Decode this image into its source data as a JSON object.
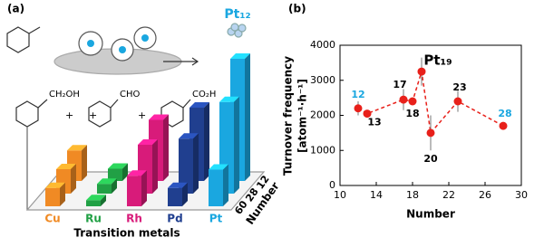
{
  "chart_data": [
    {
      "type": "bar3d",
      "panel_label": "(a)",
      "categories": [
        "Cu",
        "Ru",
        "Rh",
        "Pd",
        "Pt"
      ],
      "category_colors": [
        "#f08a24",
        "#21a045",
        "#d81b7a",
        "#203f8f",
        "#1aa7e0"
      ],
      "series": [
        {
          "name": "60",
          "values": [
            15,
            5,
            25,
            15,
            30
          ]
        },
        {
          "name": "28",
          "values": [
            20,
            8,
            40,
            45,
            75
          ]
        },
        {
          "name": "12",
          "values": [
            25,
            10,
            50,
            60,
            100
          ]
        }
      ],
      "x_label": "Transition metals",
      "depth_label": "Number",
      "highlight_label": "Pt₁₂",
      "products": [
        "CH₂OH",
        "CHO",
        "CO₂H"
      ],
      "plus": "+"
    },
    {
      "type": "line",
      "panel_label": "(b)",
      "x": [
        12,
        13,
        17,
        18,
        19,
        20,
        23,
        28
      ],
      "series": [
        {
          "name": "TOF",
          "color": "#e8201a",
          "values": [
            2200,
            2050,
            2450,
            2400,
            3250,
            1500,
            2400,
            1700
          ],
          "errors": [
            200,
            null,
            300,
            null,
            400,
            500,
            300,
            null
          ]
        }
      ],
      "point_labels": [
        "12",
        "13",
        "17",
        "18",
        "Pt₁₉",
        "20",
        "23",
        "28"
      ],
      "point_label_colors": [
        "#1aa7e0",
        "#000",
        "#000",
        "#000",
        "#000",
        "#000",
        "#000",
        "#1aa7e0"
      ],
      "xlim": [
        10,
        30
      ],
      "xticks": [
        10,
        14,
        18,
        22,
        26,
        30
      ],
      "ylim": [
        0,
        4000
      ],
      "yticks": [
        0,
        1000,
        2000,
        3000,
        4000
      ],
      "x_label": "Number",
      "y_label": [
        "Turnover frequency",
        "[atom⁻¹·h⁻¹]"
      ]
    }
  ]
}
